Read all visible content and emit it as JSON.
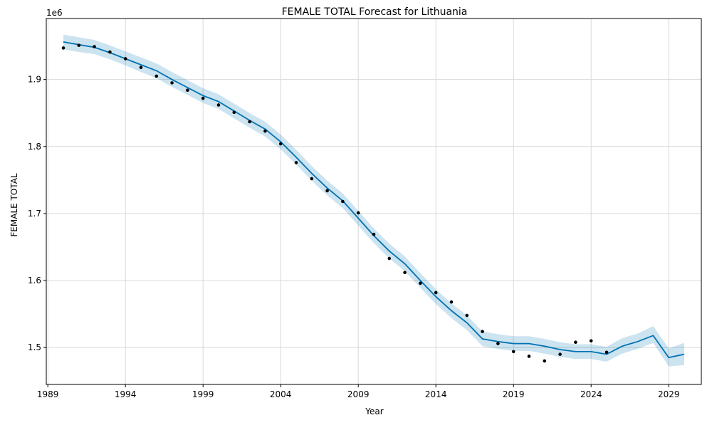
{
  "chart_data": {
    "type": "line",
    "title": "FEMALE TOTAL Forecast for Lithuania",
    "xlabel": "Year",
    "ylabel": "FEMALE TOTAL",
    "y_offset_label": "1e6",
    "y_scale": 1000000,
    "xlim": [
      1988.9,
      2031.1
    ],
    "ylim": [
      1445000,
      1991000
    ],
    "x_ticks": [
      1989,
      1994,
      1999,
      2004,
      2009,
      2014,
      2019,
      2024,
      2029
    ],
    "x_tick_labels": [
      "1989",
      "1994",
      "1999",
      "2004",
      "2009",
      "2014",
      "2019",
      "2024",
      "2029"
    ],
    "y_ticks": [
      1500000,
      1600000,
      1700000,
      1800000,
      1900000
    ],
    "y_tick_labels": [
      "1.5",
      "1.6",
      "1.7",
      "1.8",
      "1.9"
    ],
    "grid": true,
    "colors": {
      "forecast": "#0072B2",
      "interval": "#0072B2",
      "observed": "#000000",
      "grid": "#d9d9d9"
    },
    "observed": [
      {
        "x": 1990,
        "y": 1947000
      },
      {
        "x": 1991,
        "y": 1951000
      },
      {
        "x": 1992,
        "y": 1949000
      },
      {
        "x": 1993,
        "y": 1941000
      },
      {
        "x": 1994,
        "y": 1931000
      },
      {
        "x": 1995,
        "y": 1918000
      },
      {
        "x": 1996,
        "y": 1905000
      },
      {
        "x": 1997,
        "y": 1895000
      },
      {
        "x": 1998,
        "y": 1884000
      },
      {
        "x": 1999,
        "y": 1872000
      },
      {
        "x": 2000,
        "y": 1862000
      },
      {
        "x": 2001,
        "y": 1851000
      },
      {
        "x": 2002,
        "y": 1837000
      },
      {
        "x": 2003,
        "y": 1823000
      },
      {
        "x": 2004,
        "y": 1804000
      },
      {
        "x": 2005,
        "y": 1776000
      },
      {
        "x": 2006,
        "y": 1752000
      },
      {
        "x": 2007,
        "y": 1734000
      },
      {
        "x": 2008,
        "y": 1718000
      },
      {
        "x": 2009,
        "y": 1701000
      },
      {
        "x": 2010,
        "y": 1669000
      },
      {
        "x": 2011,
        "y": 1633000
      },
      {
        "x": 2012,
        "y": 1612000
      },
      {
        "x": 2013,
        "y": 1596000
      },
      {
        "x": 2014,
        "y": 1582000
      },
      {
        "x": 2015,
        "y": 1568000
      },
      {
        "x": 2016,
        "y": 1548000
      },
      {
        "x": 2017,
        "y": 1524000
      },
      {
        "x": 2018,
        "y": 1506000
      },
      {
        "x": 2019,
        "y": 1494000
      },
      {
        "x": 2020,
        "y": 1487000
      },
      {
        "x": 2021,
        "y": 1480000
      },
      {
        "x": 2022,
        "y": 1490000
      },
      {
        "x": 2023,
        "y": 1508000
      },
      {
        "x": 2024,
        "y": 1510000
      },
      {
        "x": 2025,
        "y": 1493000
      }
    ],
    "forecast": {
      "x": [
        1990,
        1991,
        1992,
        1993,
        1994,
        1995,
        1996,
        1997,
        1998,
        1999,
        2000,
        2001,
        2002,
        2003,
        2004,
        2005,
        2006,
        2007,
        2008,
        2009,
        2010,
        2011,
        2012,
        2013,
        2014,
        2015,
        2016,
        2017,
        2018,
        2019,
        2020,
        2021,
        2022,
        2023,
        2024,
        2025,
        2026,
        2027,
        2028,
        2029,
        2030
      ],
      "yhat": [
        1956000,
        1952000,
        1948000,
        1940000,
        1931000,
        1922000,
        1913000,
        1900000,
        1888000,
        1876000,
        1867000,
        1853000,
        1839000,
        1826000,
        1807000,
        1784000,
        1760000,
        1738000,
        1719000,
        1693000,
        1667000,
        1644000,
        1625000,
        1600000,
        1576000,
        1555000,
        1537000,
        1513000,
        1509000,
        1506000,
        1506000,
        1502000,
        1497000,
        1494000,
        1494000,
        1490000,
        1502000,
        1509000,
        1518000,
        1485000,
        1490000
      ],
      "lower": [
        1945000,
        1941000,
        1938000,
        1930000,
        1921000,
        1911000,
        1902000,
        1889000,
        1877000,
        1865000,
        1856000,
        1842000,
        1828000,
        1815000,
        1796000,
        1773000,
        1749000,
        1727000,
        1708000,
        1682000,
        1656000,
        1633000,
        1614000,
        1589000,
        1565000,
        1544000,
        1526000,
        1502000,
        1498000,
        1495000,
        1495000,
        1491000,
        1486000,
        1483000,
        1483000,
        1479000,
        1491000,
        1498000,
        1507000,
        1472000,
        1474000
      ],
      "upper": [
        1967000,
        1963000,
        1959000,
        1951000,
        1942000,
        1933000,
        1924000,
        1911000,
        1899000,
        1887000,
        1878000,
        1864000,
        1850000,
        1837000,
        1818000,
        1795000,
        1771000,
        1749000,
        1730000,
        1704000,
        1678000,
        1655000,
        1636000,
        1611000,
        1587000,
        1566000,
        1548000,
        1524000,
        1520000,
        1517000,
        1517000,
        1513000,
        1508000,
        1505000,
        1505000,
        1501000,
        1514000,
        1521000,
        1532000,
        1499000,
        1507000
      ]
    }
  }
}
